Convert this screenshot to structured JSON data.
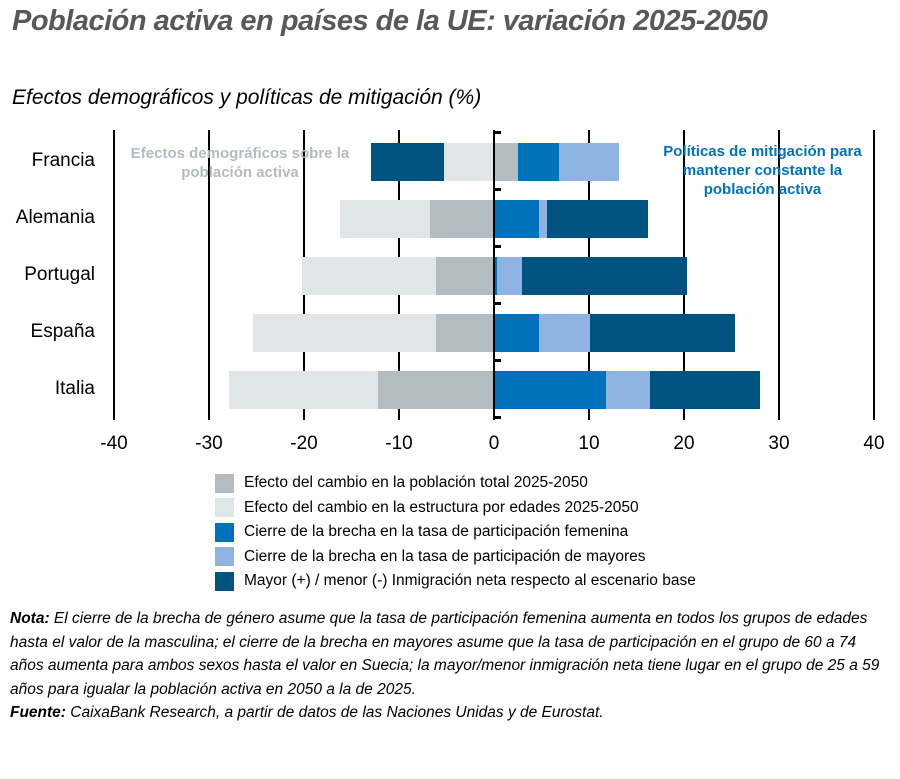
{
  "header": {
    "title": "Población activa en países de la UE: variación 2025-2050",
    "subtitle": "Efectos demográficos y políticas de mitigación (%)"
  },
  "annotations": {
    "left": "Efectos demográficos sobre la población activa",
    "right": "Políticas de mitigación para mantener constante la población activa"
  },
  "note": {
    "label": "Nota:",
    "text": " El cierre de la brecha de género asume que la tasa de participación femenina aumenta en todos los grupos de edades hasta el valor de la masculina; el cierre de la brecha en mayores asume que la tasa de participación en el grupo de 60 a 74 años aumenta para ambos sexos hasta el valor en Suecia; la mayor/menor inmigración neta tiene lugar en el grupo de 25 a 59 años para igualar la población activa en 2050 a la de 2025."
  },
  "source": {
    "label": "Fuente:",
    "text": " CaixaBank Research, a partir de datos de las Naciones Unidas y de Eurostat."
  },
  "colors": {
    "poblacion_total": "#b2bcc1",
    "estructura_edades": "#e0e5e8",
    "brecha_femenina": "#0072bb",
    "brecha_mayores": "#8fb4e3",
    "inmigracion": "#005380"
  },
  "chart_data": {
    "type": "bar",
    "orientation": "horizontal",
    "stacked": true,
    "title": "Población activa en países de la UE: variación 2025-2050",
    "subtitle": "Efectos demográficos y políticas de mitigación (%)",
    "xlabel": "",
    "ylabel": "",
    "xlim": [
      -40,
      40
    ],
    "xticks": [
      -40,
      -30,
      -20,
      -10,
      0,
      10,
      20,
      30,
      40
    ],
    "grid": true,
    "legend_position": "bottom",
    "categories": [
      "Francia",
      "Alemania",
      "Portugal",
      "España",
      "Italia"
    ],
    "series": [
      {
        "name": "Efecto del cambio en la población total 2025-2050",
        "color": "#b2bcc1",
        "values": [
          2.4,
          -6.7,
          -6.1,
          -6.1,
          -12.2
        ]
      },
      {
        "name": "Efecto del cambio en la estructura por edades 2025-2050",
        "color": "#e0e5e8",
        "values": [
          -5.3,
          -9.5,
          -14.1,
          -19.3,
          -15.7
        ]
      },
      {
        "name": "Cierre de la brecha en la tasa de participación femenina",
        "color": "#0072bb",
        "values": [
          4.3,
          4.6,
          0.2,
          4.6,
          11.7
        ]
      },
      {
        "name": "Cierre de la brecha en la tasa de participación de mayores",
        "color": "#8fb4e3",
        "values": [
          6.4,
          0.9,
          2.6,
          5.4,
          4.6
        ]
      },
      {
        "name": "Mayor (+) / menor (-) Inmigración neta respecto al escenario base",
        "color": "#005380",
        "values": [
          -7.6,
          10.6,
          17.4,
          15.3,
          11.6
        ]
      }
    ]
  },
  "axis": {
    "ticks": [
      "-40",
      "-30",
      "-20",
      "-10",
      "0",
      "10",
      "20",
      "30",
      "40"
    ]
  },
  "legend": [
    {
      "label": "Efecto del cambio en la población total 2025-2050",
      "color": "#b2bcc1"
    },
    {
      "label": "Efecto del cambio en la estructura por edades 2025-2050",
      "color": "#e0e5e8"
    },
    {
      "label": "Cierre de la brecha en la tasa de participación femenina",
      "color": "#0072bb"
    },
    {
      "label": "Cierre de la brecha en la tasa de participación de mayores",
      "color": "#8fb4e3"
    },
    {
      "label": "Mayor (+) / menor (-) Inmigración neta respecto al escenario base",
      "color": "#005380"
    }
  ]
}
